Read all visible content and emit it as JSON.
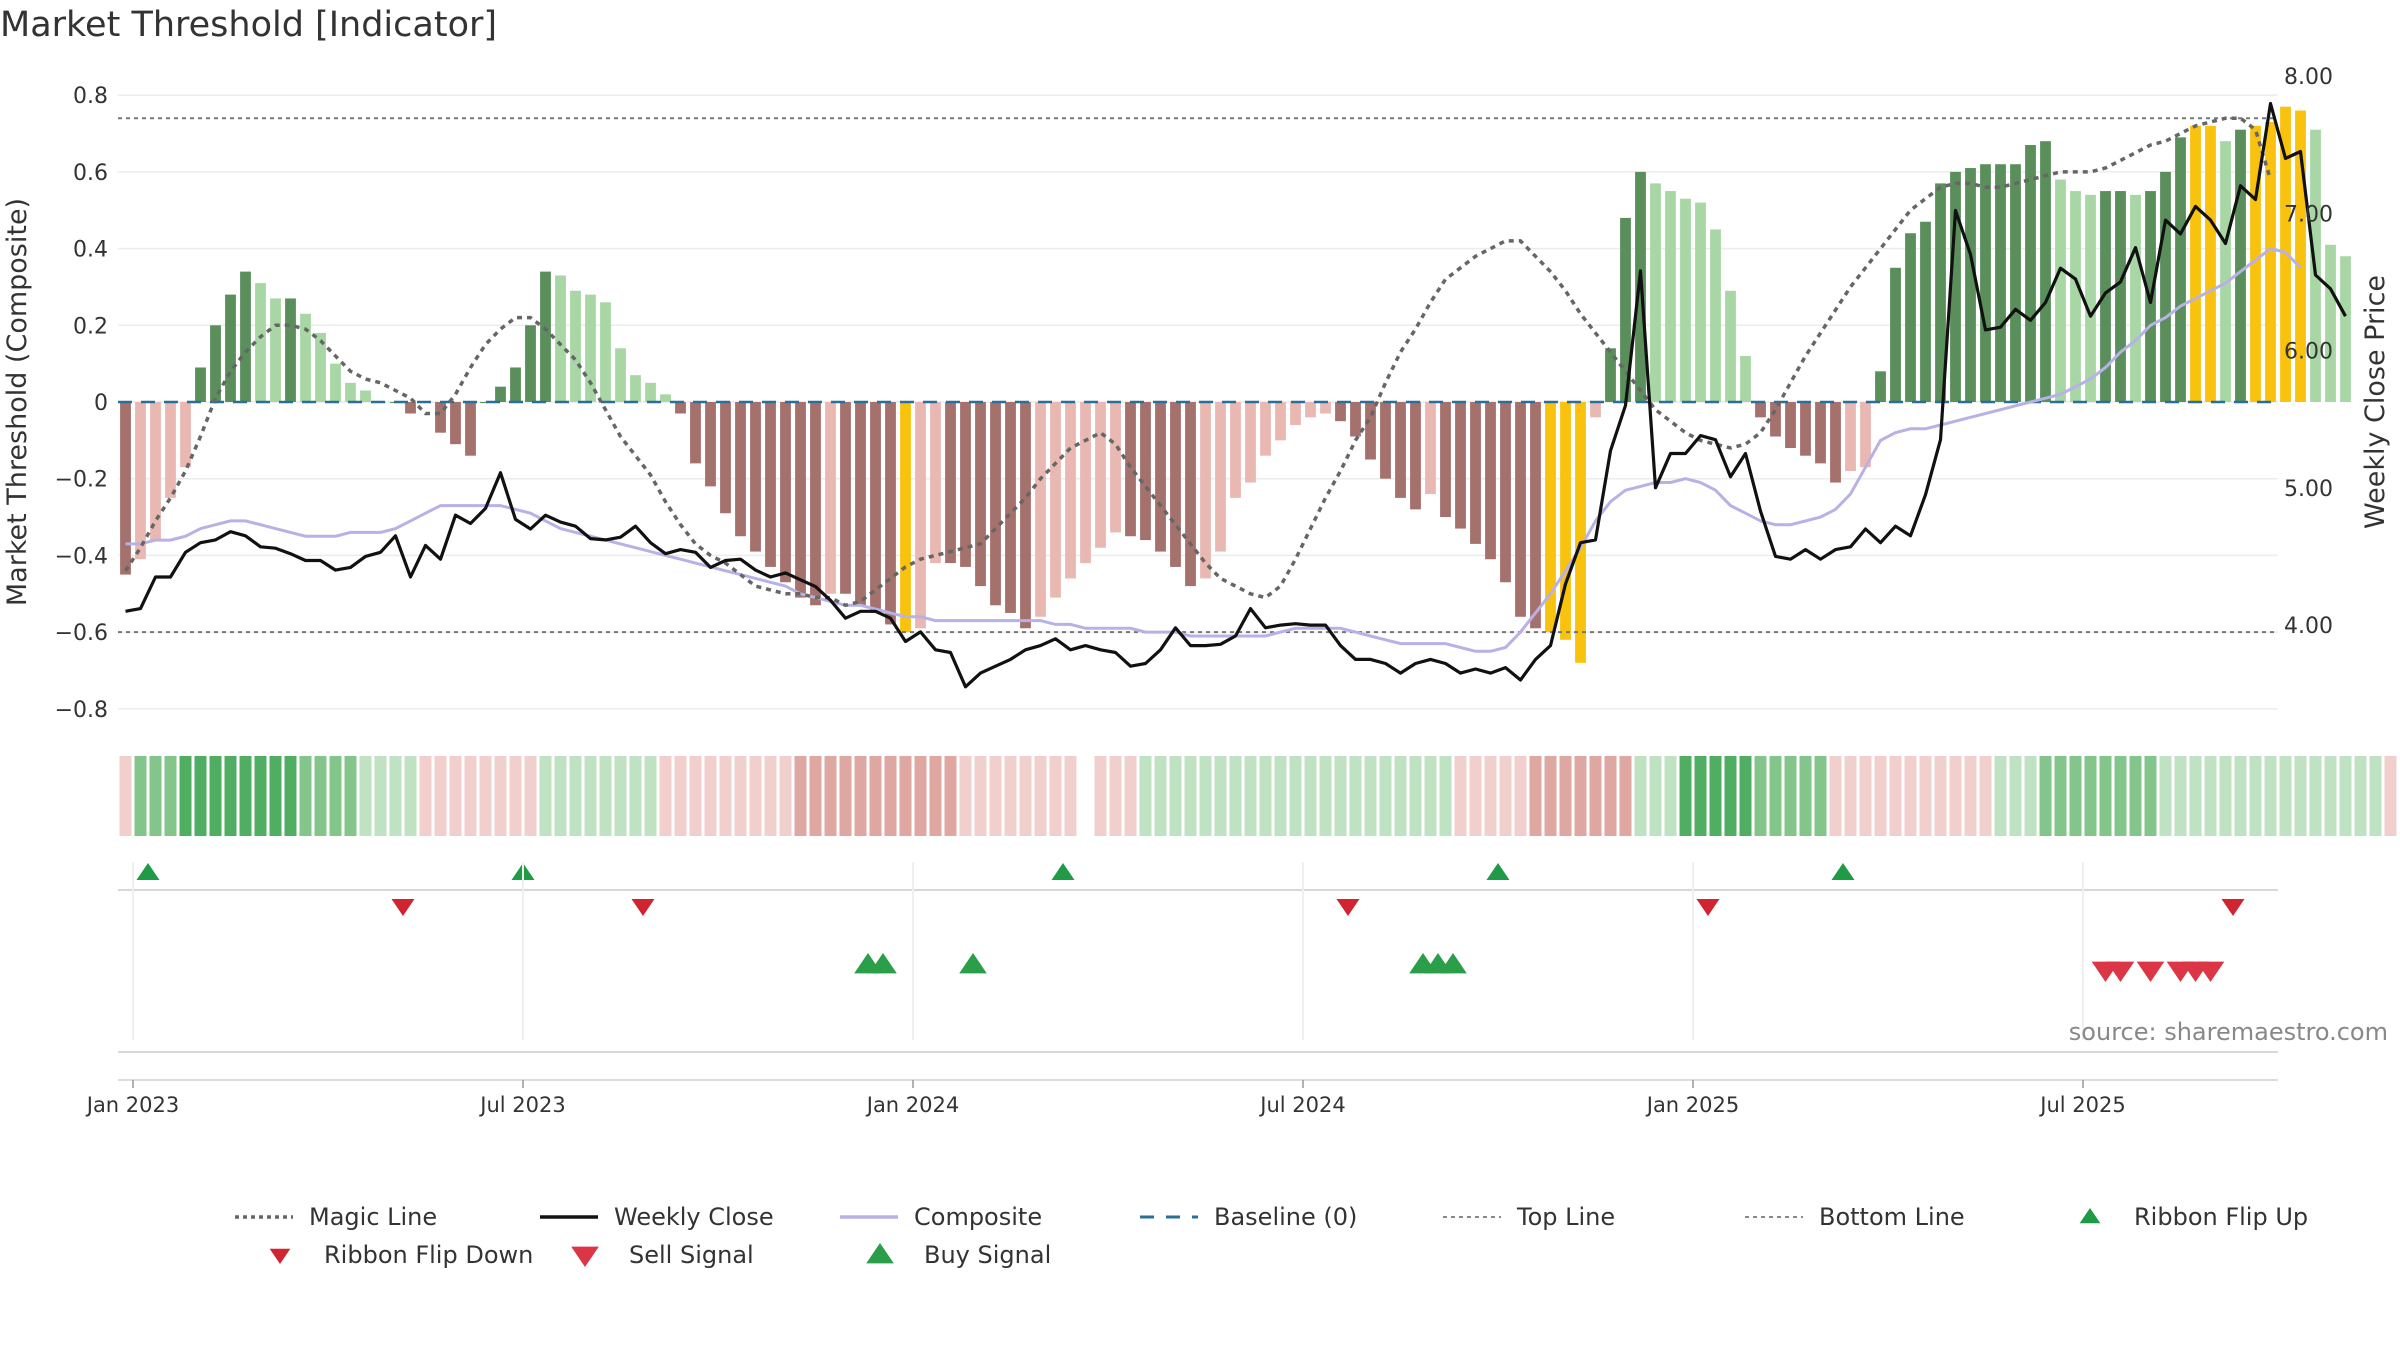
{
  "chart_data": {
    "type": "bar",
    "title": "Market Threshold [Indicator]",
    "ylabel": "Market Threshold (Composite)",
    "y2label": "Weekly Close Price",
    "ylim": [
      -0.85,
      0.85
    ],
    "y2lim": [
      3.25,
      8.0
    ],
    "yticks": [
      "0.8",
      "0.6",
      "0.4",
      "0.2",
      "0",
      "−0.2",
      "−0.4",
      "−0.6",
      "−0.8"
    ],
    "yticks_values": [
      0.8,
      0.6,
      0.4,
      0.2,
      0,
      -0.2,
      -0.4,
      -0.6,
      -0.8
    ],
    "y2ticks": [
      "8.00",
      "7.00",
      "6.00",
      "5.00",
      "4.00"
    ],
    "y2ticks_values": [
      8,
      7,
      6,
      5,
      4
    ],
    "xticks": [
      "Jan 2023",
      "Jul 2023",
      "Jan 2024",
      "Jul 2024",
      "Jan 2025",
      "Jul 2025"
    ],
    "xticks_weeks": [
      1,
      27,
      53,
      79,
      105,
      131
    ],
    "top_line": 0.74,
    "bottom_line": -0.6,
    "grid": true,
    "legend_position": "bottom",
    "colors": {
      "pos_light": "#a9d6a5",
      "pos_dark": "#5a8f5c",
      "neg_light": "#e9b8b2",
      "neg_dark": "#a5716c",
      "extreme": "#f8c20f",
      "close": "#111111",
      "composite": "#b7b1e6",
      "magic": "#666666",
      "baseline": "#2a6f97",
      "threshold": "#777777",
      "up": "#1f9a47",
      "down": "#d02530",
      "sell": "#dc3545",
      "buy": "#2a9e48"
    },
    "weeks": 144,
    "threshold": [
      -0.45,
      -0.41,
      -0.36,
      -0.25,
      -0.17,
      0.09,
      0.2,
      0.28,
      0.34,
      0.31,
      0.27,
      0.27,
      0.23,
      0.18,
      0.1,
      0.05,
      0.03,
      0,
      0,
      -0.03,
      0,
      -0.08,
      -0.11,
      -0.14,
      0,
      0.04,
      0.09,
      0.2,
      0.34,
      0.33,
      0.29,
      0.28,
      0.26,
      0.14,
      0.07,
      0.05,
      0.02,
      -0.03,
      -0.16,
      -0.22,
      -0.29,
      -0.35,
      -0.39,
      -0.43,
      -0.47,
      -0.51,
      -0.53,
      -0.5,
      -0.5,
      -0.53,
      -0.55,
      -0.58,
      -0.6,
      -0.59,
      -0.42,
      -0.42,
      -0.43,
      -0.48,
      -0.53,
      -0.55,
      -0.59,
      -0.56,
      -0.51,
      -0.46,
      -0.42,
      -0.38,
      -0.34,
      -0.35,
      -0.36,
      -0.39,
      -0.43,
      -0.48,
      -0.46,
      -0.39,
      -0.25,
      -0.21,
      -0.14,
      -0.1,
      -0.06,
      -0.04,
      -0.03,
      -0.05,
      -0.09,
      -0.15,
      -0.2,
      -0.25,
      -0.28,
      -0.24,
      -0.3,
      -0.33,
      -0.37,
      -0.41,
      -0.47,
      -0.56,
      -0.59,
      -0.6,
      -0.62,
      -0.68,
      -0.04,
      0.14,
      0.48,
      0.6,
      0.57,
      0.55,
      0.53,
      0.52,
      0.45,
      0.29,
      0.12,
      -0.04,
      -0.09,
      -0.12,
      -0.14,
      -0.16,
      -0.21,
      -0.18,
      -0.17,
      0.08,
      0.35,
      0.44,
      0.47,
      0.57,
      0.6,
      0.61,
      0.62,
      0.62,
      0.62,
      0.67,
      0.68,
      0.58,
      0.55,
      0.54,
      0.55,
      0.55,
      0.54,
      0.55,
      0.6,
      0.69,
      0.72,
      0.72,
      0.68,
      0.71,
      0.72,
      0.73,
      0.77,
      0.76,
      0.71,
      0.41,
      0.38
    ],
    "magic_line": [
      -0.44,
      -0.38,
      -0.31,
      -0.25,
      -0.18,
      -0.09,
      0.01,
      0.08,
      0.13,
      0.17,
      0.2,
      0.2,
      0.19,
      0.16,
      0.12,
      0.08,
      0.06,
      0.05,
      0.03,
      0.01,
      -0.03,
      -0.03,
      0.02,
      0.09,
      0.15,
      0.19,
      0.22,
      0.22,
      0.19,
      0.15,
      0.11,
      0.05,
      -0.02,
      -0.09,
      -0.14,
      -0.19,
      -0.26,
      -0.32,
      -0.37,
      -0.4,
      -0.42,
      -0.45,
      -0.48,
      -0.49,
      -0.5,
      -0.5,
      -0.51,
      -0.51,
      -0.53,
      -0.52,
      -0.49,
      -0.46,
      -0.43,
      -0.41,
      -0.4,
      -0.39,
      -0.38,
      -0.37,
      -0.33,
      -0.29,
      -0.25,
      -0.2,
      -0.16,
      -0.12,
      -0.1,
      -0.08,
      -0.11,
      -0.17,
      -0.22,
      -0.27,
      -0.32,
      -0.37,
      -0.42,
      -0.46,
      -0.48,
      -0.5,
      -0.51,
      -0.48,
      -0.41,
      -0.33,
      -0.25,
      -0.18,
      -0.1,
      -0.04,
      0.05,
      0.13,
      0.19,
      0.26,
      0.32,
      0.35,
      0.38,
      0.4,
      0.42,
      0.42,
      0.38,
      0.34,
      0.29,
      0.23,
      0.18,
      0.13,
      0.08,
      0.03,
      -0.02,
      -0.05,
      -0.08,
      -0.1,
      -0.11,
      -0.12,
      -0.11,
      -0.08,
      -0.02,
      0.05,
      0.12,
      0.18,
      0.24,
      0.3,
      0.35,
      0.4,
      0.45,
      0.5,
      0.53,
      0.56,
      0.57,
      0.57,
      0.56,
      0.56,
      0.57,
      0.58,
      0.59,
      0.6,
      0.6,
      0.6,
      0.61,
      0.63,
      0.65,
      0.67,
      0.68,
      0.7,
      0.72,
      0.73,
      0.74,
      0.74,
      0.71,
      0.58
    ],
    "composite": [
      -0.37,
      -0.37,
      -0.36,
      -0.36,
      -0.35,
      -0.33,
      -0.32,
      -0.31,
      -0.31,
      -0.32,
      -0.33,
      -0.34,
      -0.35,
      -0.35,
      -0.35,
      -0.34,
      -0.34,
      -0.34,
      -0.33,
      -0.31,
      -0.29,
      -0.27,
      -0.27,
      -0.27,
      -0.27,
      -0.27,
      -0.28,
      -0.29,
      -0.31,
      -0.33,
      -0.34,
      -0.35,
      -0.36,
      -0.37,
      -0.38,
      -0.39,
      -0.4,
      -0.41,
      -0.42,
      -0.43,
      -0.44,
      -0.45,
      -0.46,
      -0.47,
      -0.48,
      -0.5,
      -0.51,
      -0.52,
      -0.53,
      -0.53,
      -0.54,
      -0.55,
      -0.56,
      -0.56,
      -0.57,
      -0.57,
      -0.57,
      -0.57,
      -0.57,
      -0.57,
      -0.57,
      -0.57,
      -0.58,
      -0.58,
      -0.59,
      -0.59,
      -0.59,
      -0.59,
      -0.6,
      -0.6,
      -0.6,
      -0.61,
      -0.61,
      -0.61,
      -0.61,
      -0.61,
      -0.61,
      -0.6,
      -0.59,
      -0.59,
      -0.59,
      -0.59,
      -0.6,
      -0.61,
      -0.62,
      -0.63,
      -0.63,
      -0.63,
      -0.63,
      -0.64,
      -0.65,
      -0.65,
      -0.64,
      -0.6,
      -0.55,
      -0.5,
      -0.44,
      -0.38,
      -0.31,
      -0.26,
      -0.23,
      -0.22,
      -0.21,
      -0.21,
      -0.2,
      -0.21,
      -0.23,
      -0.27,
      -0.29,
      -0.31,
      -0.32,
      -0.32,
      -0.31,
      -0.3,
      -0.28,
      -0.24,
      -0.17,
      -0.1,
      -0.08,
      -0.07,
      -0.07,
      -0.06,
      -0.05,
      -0.04,
      -0.03,
      -0.02,
      -0.01,
      0,
      0.01,
      0.02,
      0.04,
      0.06,
      0.09,
      0.13,
      0.16,
      0.2,
      0.22,
      0.25,
      0.27,
      0.29,
      0.31,
      0.34,
      0.37,
      0.4,
      0.39,
      0.35
    ],
    "weekly_close": [
      4.1,
      4.12,
      4.35,
      4.35,
      4.53,
      4.6,
      4.62,
      4.68,
      4.65,
      4.57,
      4.56,
      4.52,
      4.47,
      4.47,
      4.4,
      4.42,
      4.5,
      4.53,
      4.65,
      4.35,
      4.58,
      4.48,
      4.8,
      4.74,
      4.85,
      5.11,
      4.77,
      4.7,
      4.8,
      4.75,
      4.72,
      4.63,
      4.62,
      4.64,
      4.72,
      4.6,
      4.52,
      4.55,
      4.53,
      4.42,
      4.47,
      4.48,
      4.4,
      4.35,
      4.38,
      4.33,
      4.28,
      4.18,
      4.05,
      4.1,
      4.1,
      4.05,
      3.88,
      3.95,
      3.82,
      3.8,
      3.55,
      3.65,
      3.7,
      3.75,
      3.82,
      3.85,
      3.9,
      3.82,
      3.85,
      3.82,
      3.8,
      3.7,
      3.72,
      3.82,
      3.98,
      3.85,
      3.85,
      3.86,
      3.92,
      4.12,
      3.98,
      4.0,
      4.01,
      4.0,
      4.0,
      3.85,
      3.75,
      3.75,
      3.72,
      3.65,
      3.72,
      3.75,
      3.72,
      3.65,
      3.68,
      3.65,
      3.69,
      3.6,
      3.75,
      3.85,
      4.3,
      4.6,
      4.62,
      5.27,
      5.6,
      6.58,
      5.0,
      5.25,
      5.25,
      5.38,
      5.35,
      5.08,
      5.25,
      4.83,
      4.5,
      4.48,
      4.55,
      4.48,
      4.55,
      4.57,
      4.7,
      4.6,
      4.72,
      4.65,
      4.95,
      5.35,
      7.02,
      6.7,
      6.15,
      6.17,
      6.3,
      6.22,
      6.35,
      6.6,
      6.52,
      6.25,
      6.42,
      6.5,
      6.75,
      6.35,
      6.95,
      6.85,
      7.05,
      6.95,
      6.78,
      7.2,
      7.1,
      7.8,
      7.4,
      7.45,
      6.55,
      6.45,
      6.25
    ],
    "ribbon": [
      -1,
      2,
      2,
      2,
      3,
      3,
      3,
      3,
      3,
      3,
      3,
      3,
      2,
      2,
      2,
      2,
      1,
      1,
      1,
      1,
      -1,
      -1,
      -1,
      -1,
      -1,
      -1,
      -1,
      -1,
      1,
      1,
      1,
      1,
      1,
      1,
      1,
      1,
      -1,
      -1,
      -1,
      -1,
      -1,
      -1,
      -1,
      -1,
      -1,
      -2,
      -2,
      -2,
      -2,
      -2,
      -2,
      -2,
      -2,
      -2,
      -2,
      -2,
      -1,
      -1,
      -1,
      -1,
      -1,
      -1,
      -1,
      -1,
      0,
      -1,
      -1,
      -1,
      1,
      1,
      1,
      1,
      1,
      1,
      1,
      1,
      1,
      1,
      1,
      1,
      1,
      1,
      1,
      1,
      1,
      1,
      1,
      1,
      1,
      -1,
      -1,
      -1,
      -1,
      -1,
      -2,
      -2,
      -2,
      -2,
      -2,
      -2,
      -2,
      1,
      1,
      1,
      3,
      3,
      3,
      3,
      3,
      2,
      2,
      2,
      2,
      2,
      -1,
      -1,
      -1,
      -1,
      -1,
      -1,
      -1,
      -1,
      -1,
      -1,
      -1,
      1,
      1,
      1,
      2,
      2,
      2,
      2,
      2,
      2,
      2,
      2,
      1,
      1,
      1,
      1,
      1,
      1,
      1,
      1,
      1,
      1,
      1,
      1,
      1,
      1,
      1,
      -1
    ],
    "ribbon_flip_up_weeks": [
      2,
      27,
      63,
      92,
      115
    ],
    "ribbon_flip_down_weeks": [
      19,
      35,
      82,
      106,
      141
    ],
    "buy_signal_weeks": [
      50,
      51,
      57,
      87,
      88,
      89
    ],
    "sell_signal_weeks": [
      132.5,
      133.5,
      135.5,
      137.5,
      138.5,
      139.5
    ],
    "source": "source: sharemaestro.com",
    "legend": [
      {
        "label": "Magic Line",
        "symbol": "dotted",
        "color": "#666666"
      },
      {
        "label": "Weekly Close",
        "symbol": "solid",
        "color": "#111111"
      },
      {
        "label": "Composite",
        "symbol": "solid-light",
        "color": "#b7b1e6"
      },
      {
        "label": "Baseline (0)",
        "symbol": "dashed",
        "color": "#2a6f97"
      },
      {
        "label": "Top Line",
        "symbol": "dotted-thin",
        "color": "#888888"
      },
      {
        "label": "Bottom Line",
        "symbol": "dotted-thin",
        "color": "#888888"
      },
      {
        "label": "Ribbon Flip Up",
        "symbol": "tri-up",
        "color": "#1f9a47"
      },
      {
        "label": "Ribbon Flip Down",
        "symbol": "tri-down",
        "color": "#d02530"
      },
      {
        "label": "Sell Signal",
        "symbol": "tri-down-big",
        "color": "#dc3545"
      },
      {
        "label": "Buy Signal",
        "symbol": "tri-up-big",
        "color": "#2a9e48"
      }
    ]
  }
}
